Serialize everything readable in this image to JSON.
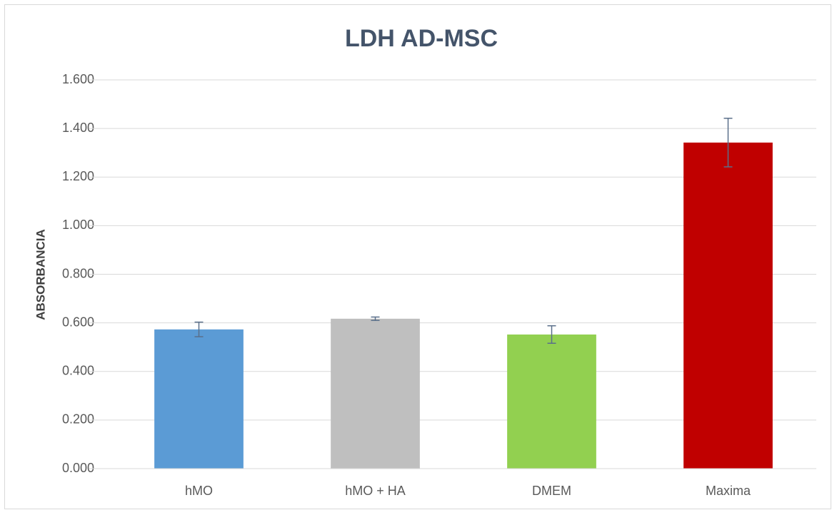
{
  "chart_data": {
    "type": "bar",
    "title": "LDH AD-MSC",
    "y_label": "ABSORBANCIA",
    "categories": [
      "hMO",
      "hMO + HA",
      "DMEM",
      "Maxima"
    ],
    "values": [
      0.573,
      0.617,
      0.552,
      1.342
    ],
    "errors": [
      0.03,
      0.007,
      0.036,
      0.1
    ],
    "colors": [
      "#5b9bd5",
      "#bfbfbf",
      "#92d050",
      "#c00000"
    ],
    "error_color": "#5a6f8a",
    "ylim": [
      0,
      1.6
    ],
    "yticks": [
      {
        "value": 0,
        "label": "0.000"
      },
      {
        "value": 0.2,
        "label": "0.200"
      },
      {
        "value": 0.4,
        "label": "0.400"
      },
      {
        "value": 0.6,
        "label": "0.600"
      },
      {
        "value": 0.8,
        "label": "0.800"
      },
      {
        "value": 1.0,
        "label": "1.000"
      },
      {
        "value": 1.2,
        "label": "1.200"
      },
      {
        "value": 1.4,
        "label": "1.400"
      },
      {
        "value": 1.6,
        "label": "1.600"
      }
    ],
    "grid": true
  }
}
